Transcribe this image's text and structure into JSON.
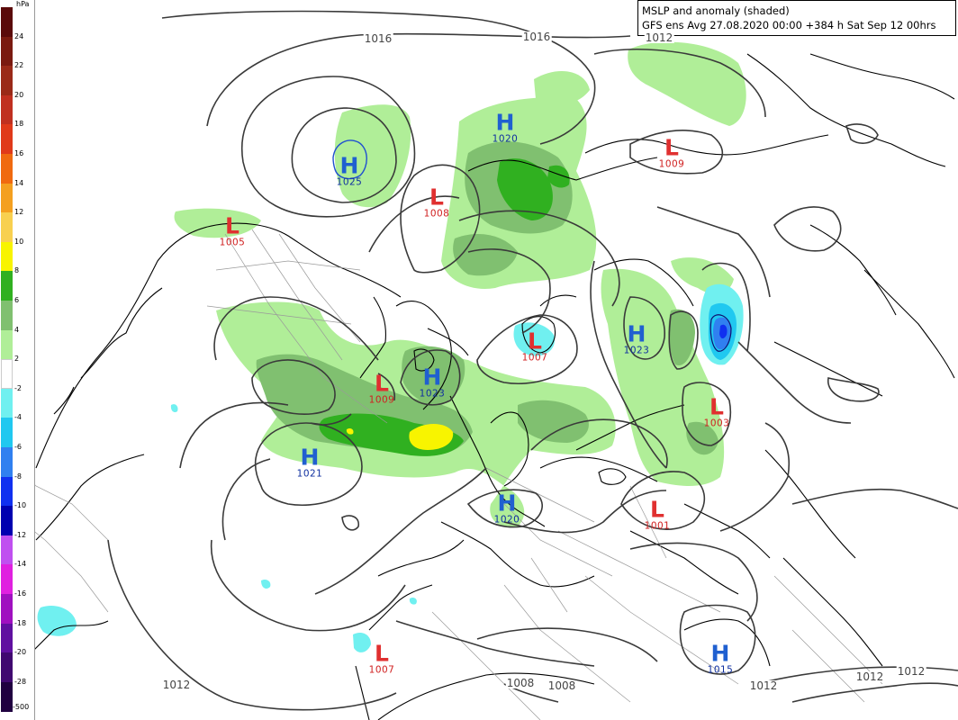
{
  "title": {
    "line1": "MSLP and anomaly (shaded)",
    "line2": "GFS ens Avg 27.08.2020 00:00 +384 h Sat Sep 12 00hrs"
  },
  "colorbar": {
    "unit": "hPa",
    "levels": [
      {
        "label": "24",
        "color": "#5a0a0a"
      },
      {
        "label": "22",
        "color": "#7a1a10"
      },
      {
        "label": "20",
        "color": "#9a2a18"
      },
      {
        "label": "18",
        "color": "#c03020"
      },
      {
        "label": "16",
        "color": "#e03a1a"
      },
      {
        "label": "14",
        "color": "#f06a10"
      },
      {
        "label": "12",
        "color": "#f4a020"
      },
      {
        "label": "10",
        "color": "#f8d050"
      },
      {
        "label": "8",
        "color": "#f8f400"
      },
      {
        "label": "6",
        "color": "#30b020"
      },
      {
        "label": "4",
        "color": "#80c070"
      },
      {
        "label": "2",
        "color": "#b0ee98"
      },
      {
        "label": "-2",
        "color": "#ffffff"
      },
      {
        "label": "-4",
        "color": "#70f0f0"
      },
      {
        "label": "-6",
        "color": "#20c8f0"
      },
      {
        "label": "-8",
        "color": "#3080f0"
      },
      {
        "label": "-10",
        "color": "#1030f0"
      },
      {
        "label": "-12",
        "color": "#0000b0"
      },
      {
        "label": "-14",
        "color": "#c050f0"
      },
      {
        "label": "-16",
        "color": "#e020e0"
      },
      {
        "label": "-18",
        "color": "#a010c0"
      },
      {
        "label": "-20",
        "color": "#6010a0"
      },
      {
        "label": "-28",
        "color": "#400870"
      },
      {
        "label": "-500",
        "color": "#200040"
      }
    ]
  },
  "pressure_centers": [
    {
      "type": "H",
      "value": "1025"
    },
    {
      "type": "H",
      "value": "1020"
    },
    {
      "type": "L",
      "value": "1009"
    },
    {
      "type": "L",
      "value": "1008"
    },
    {
      "type": "L",
      "value": "1005"
    },
    {
      "type": "H",
      "value": "1023"
    },
    {
      "type": "L",
      "value": "1007"
    },
    {
      "type": "L",
      "value": "1009"
    },
    {
      "type": "H",
      "value": "1023"
    },
    {
      "type": "L",
      "value": "1003"
    },
    {
      "type": "H",
      "value": "1021"
    },
    {
      "type": "H",
      "value": "1020"
    },
    {
      "type": "L",
      "value": "1001"
    },
    {
      "type": "L",
      "value": "1007"
    },
    {
      "type": "H",
      "value": "1015"
    }
  ],
  "isobar_labels": [
    "1016",
    "1016",
    "1012",
    "1012",
    "1008",
    "1008",
    "1012",
    "1012",
    "1012"
  ]
}
